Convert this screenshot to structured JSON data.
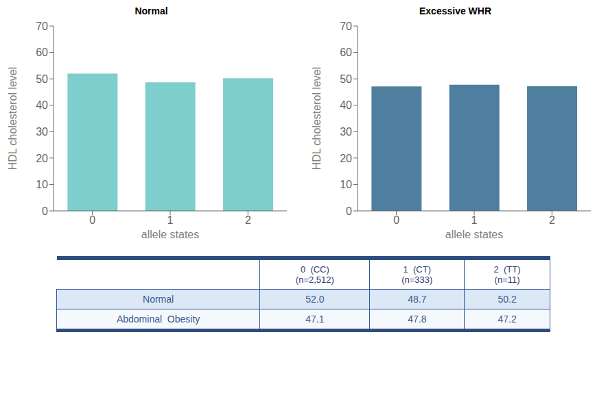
{
  "chart_data": [
    {
      "type": "bar",
      "title": "Normal",
      "xlabel": "allele states",
      "ylabel": "HDL cholesterol level",
      "categories": [
        0,
        1,
        2
      ],
      "values": [
        52.0,
        48.7,
        50.2
      ],
      "color": "#7ecece",
      "ylim": [
        0,
        70
      ],
      "yticks": [
        0,
        10,
        20,
        30,
        40,
        50,
        60,
        70
      ]
    },
    {
      "type": "bar",
      "title": "Excessive WHR",
      "xlabel": "allele states",
      "ylabel": "HDL cholesterol level",
      "categories": [
        0,
        1,
        2
      ],
      "values": [
        47.1,
        47.8,
        47.2
      ],
      "color": "#4e7f9e",
      "ylim": [
        0,
        70
      ],
      "yticks": [
        0,
        10,
        20,
        30,
        40,
        50,
        60,
        70
      ]
    },
    {
      "type": "table",
      "categories": [
        "0  (CC)\n(n=2,512)",
        "1  (CT)\n(n=333)",
        "2  (TT)\n(n=11)"
      ],
      "series": [
        {
          "name": "Normal",
          "values": [
            52.0,
            48.7,
            50.2
          ],
          "value_labels": [
            "52.0",
            "48.7",
            "50.2"
          ]
        },
        {
          "name": "Abdominal  Obesity",
          "values": [
            47.1,
            47.8,
            47.2
          ],
          "value_labels": [
            "47.1",
            "47.8",
            "47.2"
          ]
        }
      ]
    }
  ]
}
